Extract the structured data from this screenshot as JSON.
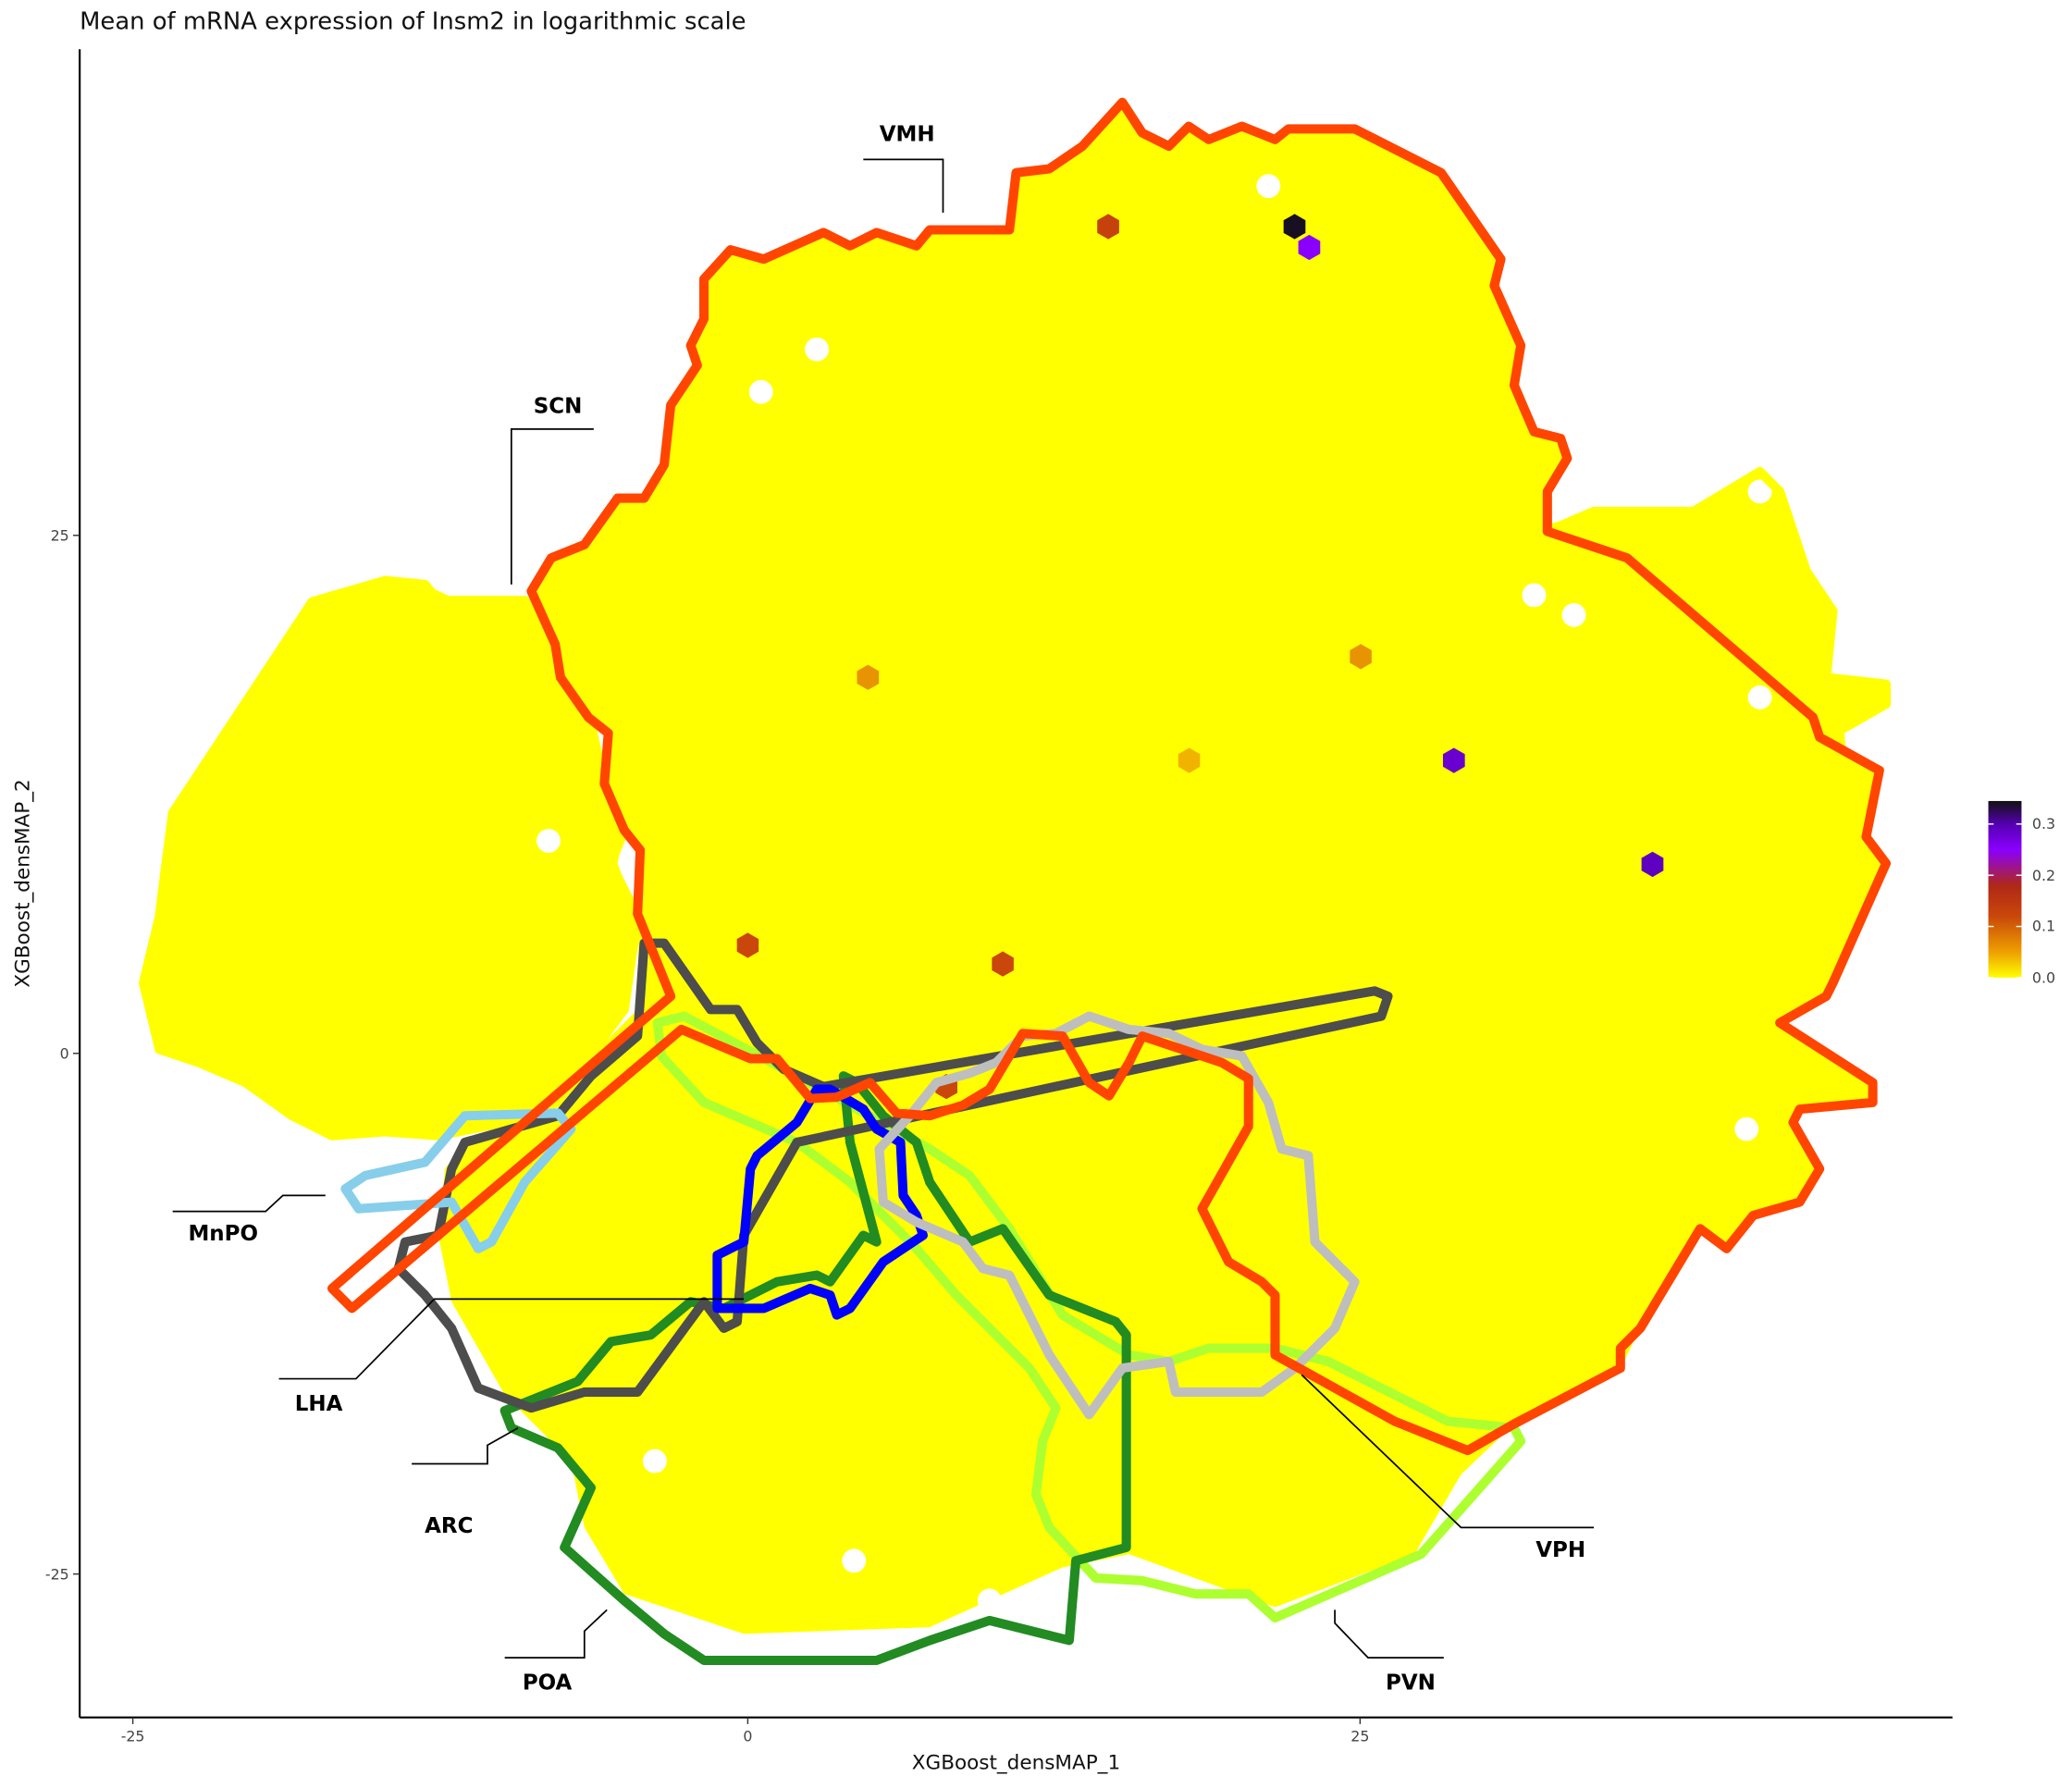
{
  "chart_data": {
    "type": "hexbin",
    "title": "Mean of mRNA expression of Insm2 in logarithmic scale",
    "xlabel": "XGBoost_densMAP_1",
    "ylabel": "XGBoost_densMAP_2",
    "x_ticks": [
      "-25",
      "0",
      "25"
    ],
    "y_ticks": [
      "25",
      "0",
      "-25"
    ],
    "grid": false,
    "background_fill_color": "#ffff00",
    "background_value": 0.0,
    "highlighted_hexes": [
      {
        "x": 14.7,
        "y": 39.8,
        "value": 0.13
      },
      {
        "x": 22.3,
        "y": 39.8,
        "value": 0.34
      },
      {
        "x": 22.9,
        "y": 38.8,
        "value": 0.25
      },
      {
        "x": 4.9,
        "y": 18.1,
        "value": 0.06
      },
      {
        "x": 25.0,
        "y": 19.1,
        "value": 0.06
      },
      {
        "x": 18.0,
        "y": 14.1,
        "value": 0.04
      },
      {
        "x": 28.8,
        "y": 14.1,
        "value": 0.28
      },
      {
        "x": 36.9,
        "y": 9.1,
        "value": 0.29
      },
      {
        "x": 0.0,
        "y": 5.2,
        "value": 0.12
      },
      {
        "x": 10.4,
        "y": 4.3,
        "value": 0.12
      },
      {
        "x": 8.1,
        "y": -1.6,
        "value": 0.12
      }
    ],
    "colorbar": {
      "ticks": [
        "0.3",
        "0.2",
        "0.1",
        "0.0"
      ],
      "range": [
        0.0,
        0.345
      ],
      "legend_position": "right",
      "stops": [
        {
          "value": 0.0,
          "color": "#ffff00"
        },
        {
          "value": 0.05,
          "color": "#eda000"
        },
        {
          "value": 0.12,
          "color": "#c9470a"
        },
        {
          "value": 0.18,
          "color": "#b02818"
        },
        {
          "value": 0.25,
          "color": "#8a00ff"
        },
        {
          "value": 0.3,
          "color": "#5400b0"
        },
        {
          "value": 0.345,
          "color": "#111111"
        }
      ]
    },
    "regions": [
      {
        "label": "VMH",
        "color": "#ff4500"
      },
      {
        "label": "SCN",
        "color": "#ffff00"
      },
      {
        "label": "MnPO",
        "color": "#87ceeb"
      },
      {
        "label": "LHA",
        "color": "#4d4d4d"
      },
      {
        "label": "ARC",
        "color": "#0000ff"
      },
      {
        "label": "POA",
        "color": "#228b22"
      },
      {
        "label": "PVN",
        "color": "#adff2f"
      },
      {
        "label": "VPH",
        "color": "#bebebe"
      }
    ]
  }
}
